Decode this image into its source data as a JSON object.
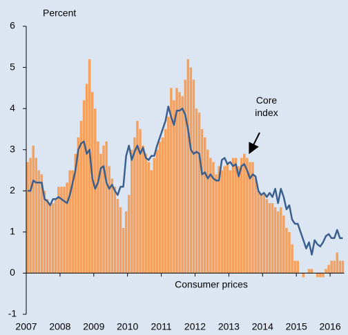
{
  "chart_data": {
    "type": "bar_line",
    "y_axis_label": "Percent",
    "categories": [
      "2007",
      null,
      null,
      null,
      null,
      null,
      null,
      null,
      null,
      null,
      null,
      null,
      "2008",
      null,
      null,
      null,
      null,
      null,
      null,
      null,
      null,
      null,
      null,
      null,
      "2009",
      null,
      null,
      null,
      null,
      null,
      null,
      null,
      null,
      null,
      null,
      null,
      "2010",
      null,
      null,
      null,
      null,
      null,
      null,
      null,
      null,
      null,
      null,
      null,
      "2011",
      null,
      null,
      null,
      null,
      null,
      null,
      null,
      null,
      null,
      null,
      null,
      "2012",
      null,
      null,
      null,
      null,
      null,
      null,
      null,
      null,
      null,
      null,
      null,
      "2013",
      null,
      null,
      null,
      null,
      null,
      null,
      null,
      null,
      null,
      null,
      null,
      "2014",
      null,
      null,
      null,
      null,
      null,
      null,
      null,
      null,
      null,
      null,
      null,
      "2015",
      null,
      null,
      null,
      null,
      null,
      null,
      null,
      null,
      null,
      null,
      null,
      "2016",
      null,
      null,
      null,
      null
    ],
    "series": [
      {
        "name": "Consumer prices",
        "type": "bar",
        "color": "#f5a05c",
        "values": [
          2.7,
          2.8,
          3.1,
          2.8,
          2.5,
          2.4,
          2.0,
          1.8,
          1.7,
          1.7,
          1.8,
          2.1,
          2.1,
          2.1,
          2.2,
          2.5,
          2.5,
          2.9,
          3.3,
          3.7,
          4.2,
          4.6,
          5.2,
          4.4,
          4.0,
          3.2,
          2.9,
          3.1,
          3.2,
          2.6,
          2.3,
          2.1,
          1.8,
          1.6,
          1.1,
          1.5,
          1.9,
          3.0,
          3.3,
          3.7,
          3.5,
          3.1,
          2.9,
          2.7,
          2.5,
          2.8,
          3.0,
          3.2,
          3.3,
          3.5,
          3.8,
          4.5,
          4.2,
          4.5,
          4.4,
          4.3,
          4.7,
          5.2,
          5.0,
          4.7,
          4.0,
          3.9,
          3.5,
          3.3,
          3.0,
          2.8,
          2.7,
          2.4,
          2.6,
          2.5,
          2.6,
          2.7,
          2.5,
          2.8,
          2.8,
          2.6,
          2.8,
          2.9,
          2.8,
          2.7,
          2.7,
          2.3,
          2.0,
          1.9,
          1.9,
          1.8,
          1.7,
          1.7,
          1.6,
          1.5,
          1.6,
          1.4,
          1.1,
          1.0,
          0.7,
          0.3,
          0.3,
          0.0,
          -0.1,
          0.0,
          0.1,
          0.1,
          0.0,
          -0.1,
          -0.1,
          -0.1,
          0.1,
          0.2,
          0.3,
          0.3,
          0.5,
          0.3,
          0.3
        ]
      },
      {
        "name": "Core index",
        "type": "line",
        "color": "#3a5f8e",
        "values": [
          2.0,
          2.0,
          2.25,
          2.2,
          2.2,
          2.2,
          1.8,
          1.75,
          1.65,
          1.8,
          1.8,
          1.85,
          1.8,
          1.75,
          1.7,
          1.9,
          2.2,
          2.5,
          3.0,
          3.15,
          3.2,
          2.9,
          3.0,
          2.3,
          2.05,
          2.2,
          2.55,
          2.6,
          2.2,
          2.05,
          2.15,
          2.0,
          1.9,
          2.1,
          2.1,
          2.85,
          3.1,
          2.75,
          2.95,
          3.1,
          2.9,
          3.05,
          2.8,
          2.75,
          2.85,
          2.85,
          3.1,
          3.3,
          3.5,
          3.7,
          4.05,
          3.8,
          3.6,
          3.95,
          3.95,
          4.0,
          3.85,
          3.5,
          3.0,
          2.9,
          2.95,
          2.9,
          2.4,
          2.45,
          2.3,
          2.4,
          2.3,
          2.25,
          2.25,
          2.75,
          2.8,
          2.65,
          2.7,
          2.6,
          2.65,
          2.35,
          2.6,
          2.65,
          2.5,
          2.3,
          2.4,
          2.35,
          2.0,
          1.9,
          1.95,
          1.85,
          1.95,
          1.85,
          2.05,
          1.7,
          2.05,
          1.85,
          1.55,
          1.65,
          1.3,
          1.2,
          1.2,
          1.0,
          0.8,
          0.6,
          0.75,
          0.45,
          0.8,
          0.7,
          0.65,
          0.75,
          0.9,
          0.95,
          0.85,
          0.85,
          1.05,
          0.85,
          0.85
        ]
      }
    ],
    "ylim": [
      -1,
      6
    ],
    "yticks": [
      -1,
      0,
      1,
      2,
      3,
      4,
      5,
      6
    ]
  }
}
